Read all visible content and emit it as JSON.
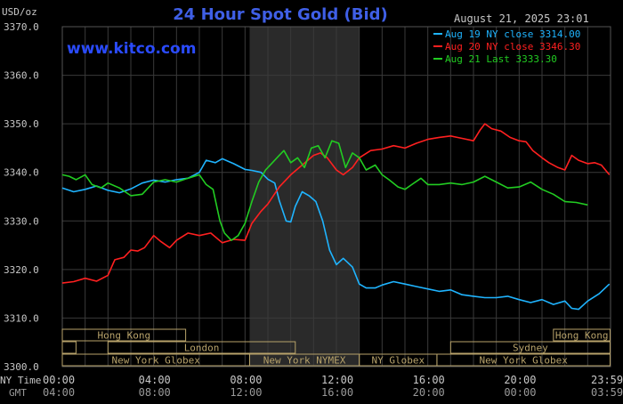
{
  "header": {
    "title": "24 Hour Spot Gold (Bid)",
    "timestamp": "August 21, 2025 23:01",
    "unit_label": "USD/oz",
    "brand": "www.kitco.com"
  },
  "colors": {
    "background": "#000000",
    "title": "#3f5fe6",
    "brand": "#2a4bff",
    "axis_text": "#c8c8c8",
    "grid": "#3a3a3a",
    "shade": "#2a2a2a",
    "market_box": "#b7a26a",
    "aug19": "#1fb4ff",
    "aug20": "#ff2020",
    "aug21": "#22cc22"
  },
  "legend": {
    "items": [
      {
        "label": "Aug 19 NY close 3314.00",
        "color": "#1fb4ff"
      },
      {
        "label": "Aug 20 NY close 3346.30",
        "color": "#ff2020"
      },
      {
        "label": "Aug 21 Last 3333.30",
        "color": "#22cc22"
      }
    ]
  },
  "axes": {
    "ny_time_label": "NY Time",
    "gmt_label": "GMT",
    "ny_ticks": [
      "00:00",
      "04:00",
      "08:00",
      "12:00",
      "16:00",
      "20:00",
      "23:59"
    ],
    "gmt_ticks": [
      "04:00",
      "08:00",
      "12:00",
      "16:00",
      "20:00",
      "00:00",
      "03:59"
    ]
  },
  "markets": [
    {
      "label": "Hong Kong",
      "row": 0
    },
    {
      "label": "London",
      "row": 1
    },
    {
      "label": "New York Globex",
      "row": 2
    },
    {
      "label": "New York NYMEX",
      "row": 2
    },
    {
      "label": "NY Globex",
      "row": 2
    },
    {
      "label": "Hong Kong",
      "row": 0
    },
    {
      "label": "Sydney",
      "row": 1
    },
    {
      "label": "New York Globex",
      "row": 2
    }
  ],
  "chart_data": {
    "type": "line",
    "title": "24 Hour Spot Gold (Bid)",
    "ylabel": "USD/oz",
    "xlabel": "NY Time",
    "ylim": [
      3300,
      3370
    ],
    "xlim_hours": [
      0,
      24
    ],
    "yticks": [
      "3300.0",
      "3310.0",
      "3320.0",
      "3330.0",
      "3340.0",
      "3350.0",
      "3360.0",
      "3370.0"
    ],
    "grid": true,
    "legend_position": "top-right",
    "shaded_region_hours": [
      8.2,
      13.0
    ],
    "series": [
      {
        "name": "Aug 19 NY close 3314.00",
        "color": "#1fb4ff",
        "points": [
          [
            0,
            3336.8
          ],
          [
            0.5,
            3336.0
          ],
          [
            1,
            3336.5
          ],
          [
            1.5,
            3337.2
          ],
          [
            2,
            3336.3
          ],
          [
            2.5,
            3335.8
          ],
          [
            3,
            3336.6
          ],
          [
            3.5,
            3337.8
          ],
          [
            4,
            3338.4
          ],
          [
            4.5,
            3338.0
          ],
          [
            5,
            3338.5
          ],
          [
            5.5,
            3338.8
          ],
          [
            6,
            3340.0
          ],
          [
            6.3,
            3342.5
          ],
          [
            6.7,
            3342.0
          ],
          [
            7,
            3342.8
          ],
          [
            7.5,
            3341.8
          ],
          [
            8,
            3340.6
          ],
          [
            8.3,
            3340.4
          ],
          [
            8.7,
            3340.0
          ],
          [
            9,
            3338.6
          ],
          [
            9.3,
            3337.8
          ],
          [
            9.5,
            3334.2
          ],
          [
            9.8,
            3330.0
          ],
          [
            10.0,
            3329.8
          ],
          [
            10.2,
            3333.0
          ],
          [
            10.5,
            3336.0
          ],
          [
            10.8,
            3335.2
          ],
          [
            11.1,
            3334.0
          ],
          [
            11.4,
            3330.0
          ],
          [
            11.7,
            3324.0
          ],
          [
            12.0,
            3321.0
          ],
          [
            12.3,
            3322.3
          ],
          [
            12.7,
            3320.5
          ],
          [
            13.0,
            3317.0
          ],
          [
            13.3,
            3316.2
          ],
          [
            13.7,
            3316.2
          ],
          [
            14.0,
            3316.8
          ],
          [
            14.5,
            3317.5
          ],
          [
            15.0,
            3317.0
          ],
          [
            15.5,
            3316.5
          ],
          [
            16.0,
            3316.0
          ],
          [
            16.5,
            3315.5
          ],
          [
            17.0,
            3315.8
          ],
          [
            17.5,
            3314.8
          ],
          [
            18.0,
            3314.5
          ],
          [
            18.5,
            3314.2
          ],
          [
            19.0,
            3314.2
          ],
          [
            19.5,
            3314.5
          ],
          [
            20.0,
            3313.8
          ],
          [
            20.5,
            3313.2
          ],
          [
            21.0,
            3313.8
          ],
          [
            21.5,
            3312.8
          ],
          [
            22.0,
            3313.5
          ],
          [
            22.3,
            3312.0
          ],
          [
            22.6,
            3311.8
          ],
          [
            23.0,
            3313.5
          ],
          [
            23.5,
            3315.0
          ],
          [
            23.95,
            3317.0
          ]
        ]
      },
      {
        "name": "Aug 20 NY close 3346.30",
        "color": "#ff2020",
        "points": [
          [
            0,
            3317.2
          ],
          [
            0.5,
            3317.5
          ],
          [
            1,
            3318.2
          ],
          [
            1.5,
            3317.6
          ],
          [
            2,
            3318.8
          ],
          [
            2.3,
            3322.0
          ],
          [
            2.7,
            3322.5
          ],
          [
            3,
            3324.0
          ],
          [
            3.3,
            3323.8
          ],
          [
            3.6,
            3324.5
          ],
          [
            4,
            3327.0
          ],
          [
            4.3,
            3325.8
          ],
          [
            4.7,
            3324.5
          ],
          [
            5,
            3326.0
          ],
          [
            5.5,
            3327.5
          ],
          [
            6,
            3327.0
          ],
          [
            6.5,
            3327.5
          ],
          [
            7,
            3325.5
          ],
          [
            7.5,
            3326.2
          ],
          [
            8,
            3326.0
          ],
          [
            8.3,
            3329.5
          ],
          [
            8.7,
            3332.0
          ],
          [
            9,
            3333.5
          ],
          [
            9.5,
            3337.0
          ],
          [
            10,
            3339.5
          ],
          [
            10.5,
            3341.5
          ],
          [
            11,
            3343.5
          ],
          [
            11.3,
            3344.0
          ],
          [
            11.6,
            3343.0
          ],
          [
            12,
            3340.5
          ],
          [
            12.3,
            3339.5
          ],
          [
            12.7,
            3341.0
          ],
          [
            13,
            3343.0
          ],
          [
            13.5,
            3344.5
          ],
          [
            14,
            3344.8
          ],
          [
            14.5,
            3345.5
          ],
          [
            15,
            3345.0
          ],
          [
            15.5,
            3346.0
          ],
          [
            16,
            3346.8
          ],
          [
            16.5,
            3347.2
          ],
          [
            17,
            3347.5
          ],
          [
            17.5,
            3347.0
          ],
          [
            18,
            3346.5
          ],
          [
            18.3,
            3348.8
          ],
          [
            18.5,
            3350.0
          ],
          [
            18.8,
            3349.0
          ],
          [
            19.2,
            3348.5
          ],
          [
            19.6,
            3347.2
          ],
          [
            20,
            3346.5
          ],
          [
            20.3,
            3346.3
          ],
          [
            20.6,
            3344.5
          ],
          [
            21,
            3343.0
          ],
          [
            21.3,
            3342.0
          ],
          [
            21.7,
            3341.0
          ],
          [
            22,
            3340.5
          ],
          [
            22.3,
            3343.5
          ],
          [
            22.6,
            3342.5
          ],
          [
            23,
            3341.8
          ],
          [
            23.3,
            3342.0
          ],
          [
            23.6,
            3341.5
          ],
          [
            23.95,
            3339.5
          ]
        ]
      },
      {
        "name": "Aug 21 Last 3333.30",
        "color": "#22cc22",
        "points": [
          [
            0,
            3339.5
          ],
          [
            0.3,
            3339.2
          ],
          [
            0.6,
            3338.5
          ],
          [
            1,
            3339.5
          ],
          [
            1.3,
            3337.5
          ],
          [
            1.7,
            3336.8
          ],
          [
            2,
            3337.8
          ],
          [
            2.5,
            3336.8
          ],
          [
            3,
            3335.2
          ],
          [
            3.5,
            3335.5
          ],
          [
            4,
            3338.0
          ],
          [
            4.5,
            3338.5
          ],
          [
            5,
            3338.0
          ],
          [
            5.5,
            3338.8
          ],
          [
            6,
            3339.5
          ],
          [
            6.3,
            3337.5
          ],
          [
            6.6,
            3336.5
          ],
          [
            6.9,
            3330.0
          ],
          [
            7.1,
            3327.5
          ],
          [
            7.4,
            3326.0
          ],
          [
            7.7,
            3327.0
          ],
          [
            8.0,
            3329.5
          ],
          [
            8.3,
            3334.0
          ],
          [
            8.6,
            3338.0
          ],
          [
            8.9,
            3340.5
          ],
          [
            9.2,
            3342.0
          ],
          [
            9.5,
            3343.5
          ],
          [
            9.7,
            3344.5
          ],
          [
            10.0,
            3342.0
          ],
          [
            10.3,
            3343.0
          ],
          [
            10.6,
            3341.0
          ],
          [
            10.9,
            3345.0
          ],
          [
            11.2,
            3345.5
          ],
          [
            11.5,
            3343.0
          ],
          [
            11.8,
            3346.5
          ],
          [
            12.1,
            3346.0
          ],
          [
            12.4,
            3341.0
          ],
          [
            12.7,
            3344.0
          ],
          [
            13.0,
            3343.0
          ],
          [
            13.3,
            3340.5
          ],
          [
            13.7,
            3341.5
          ],
          [
            14.0,
            3339.5
          ],
          [
            14.3,
            3338.5
          ],
          [
            14.7,
            3337.0
          ],
          [
            15.0,
            3336.5
          ],
          [
            15.3,
            3337.5
          ],
          [
            15.7,
            3338.8
          ],
          [
            16.0,
            3337.5
          ],
          [
            16.5,
            3337.5
          ],
          [
            17.0,
            3337.8
          ],
          [
            17.5,
            3337.5
          ],
          [
            18.0,
            3338.0
          ],
          [
            18.5,
            3339.2
          ],
          [
            19.0,
            3338.0
          ],
          [
            19.5,
            3336.8
          ],
          [
            20.0,
            3337.0
          ],
          [
            20.5,
            3338.0
          ],
          [
            21.0,
            3336.5
          ],
          [
            21.5,
            3335.5
          ],
          [
            22.0,
            3334.0
          ],
          [
            22.5,
            3333.8
          ],
          [
            23.0,
            3333.3
          ]
        ]
      }
    ]
  }
}
